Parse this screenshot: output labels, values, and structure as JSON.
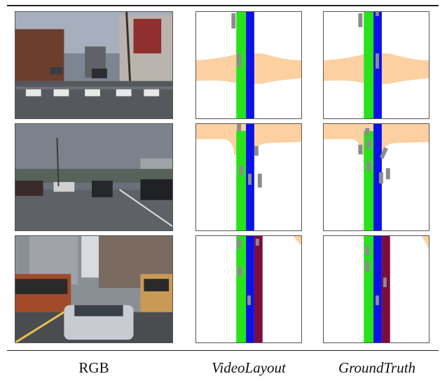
{
  "columns": [
    "RGB",
    "VideoLayout",
    "GroundTruth"
  ],
  "rows": [
    {
      "scene": "city-intersection-crosswalk"
    },
    {
      "scene": "suburban-road-cloudy"
    },
    {
      "scene": "downtown-street-buses"
    }
  ],
  "legend_colors": {
    "road": "#ffffff",
    "crosswalk_side_road": "#fdd0a2",
    "lane_green": "#29e31a",
    "lane_blue": "#0a12e8",
    "lane_maroon": "#7b0d3d",
    "vehicle": "#8c8c8c"
  }
}
